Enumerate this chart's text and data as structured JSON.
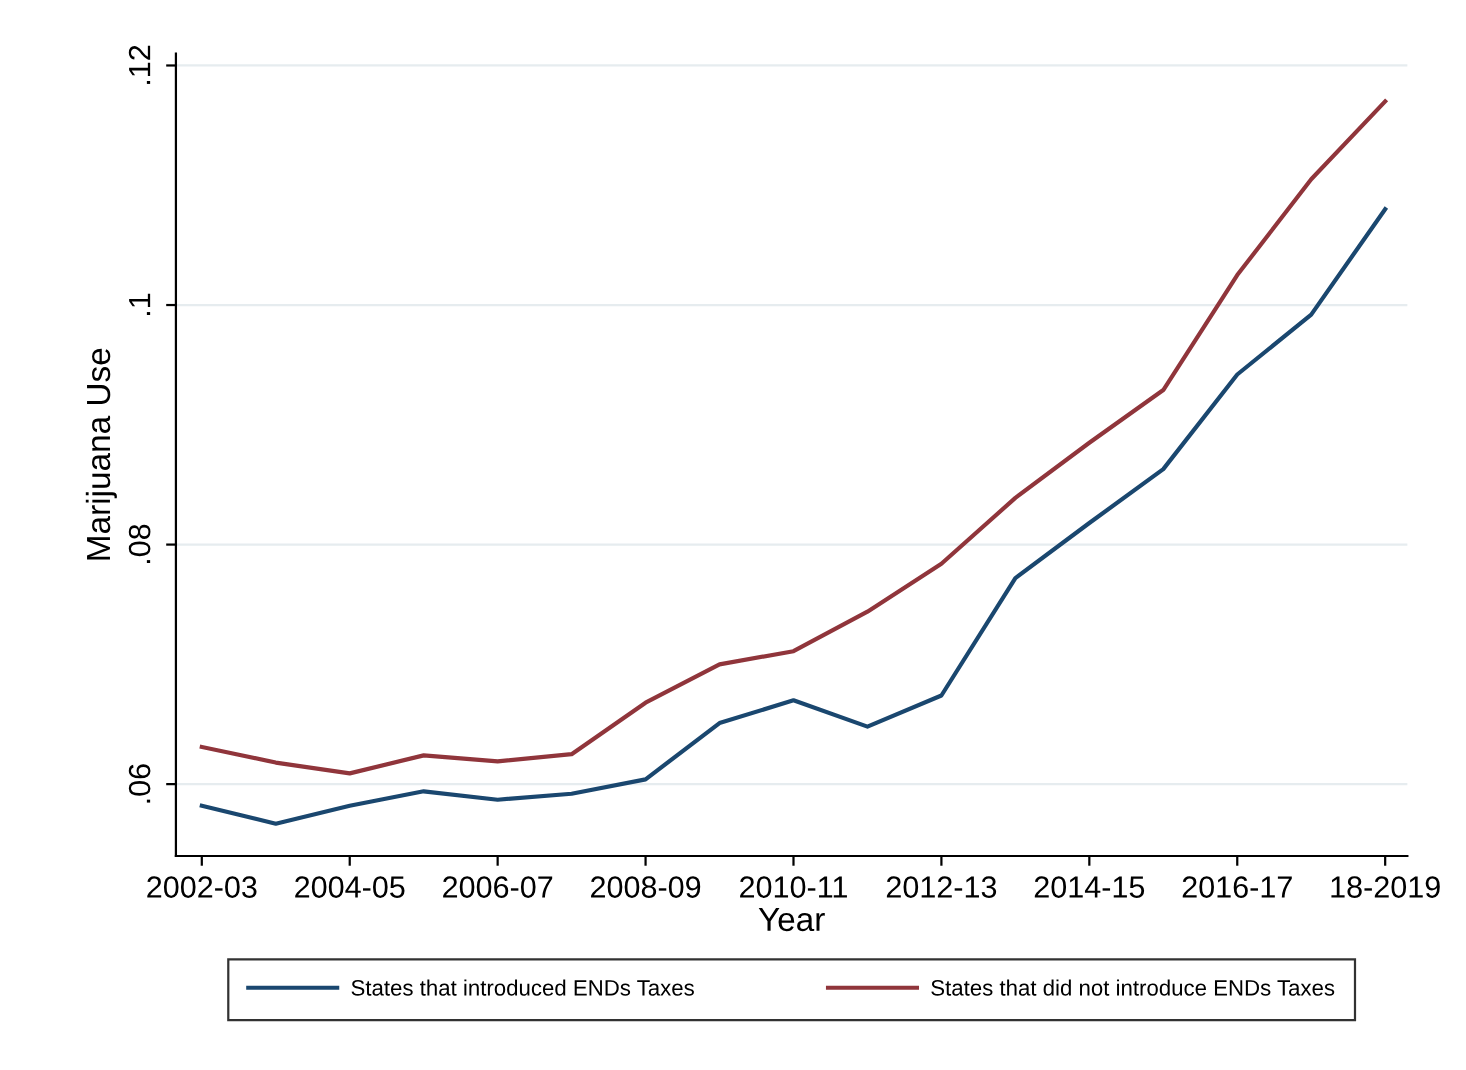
{
  "chart_data": {
    "type": "line",
    "xlabel": "Year",
    "ylabel": "Marijuana Use",
    "categories": [
      "2002-03",
      null,
      "2004-05",
      null,
      "2006-07",
      null,
      "2008-09",
      null,
      "2010-11",
      null,
      "2012-13",
      null,
      "2014-15",
      null,
      "2016-17",
      null,
      "18-2019"
    ],
    "series": [
      {
        "name": "States that introduced ENDs Taxes",
        "color": "#1a476f",
        "values": [
          0.0582,
          0.0567,
          0.0582,
          0.0594,
          0.0587,
          0.0592,
          0.0604,
          0.0651,
          0.067,
          0.0648,
          0.0674,
          0.0772,
          0.0818,
          0.0863,
          0.0942,
          0.0992,
          0.108
        ]
      },
      {
        "name": "States that did not introduce ENDs Taxes",
        "color": "#90353b",
        "values": [
          0.0631,
          0.0618,
          0.0609,
          0.0624,
          0.0619,
          0.0625,
          0.0668,
          0.07,
          0.0711,
          0.0744,
          0.0784,
          0.0839,
          0.0885,
          0.0929,
          0.1025,
          0.1105,
          0.117
        ]
      }
    ],
    "ylim": [
      0.054,
      0.121
    ],
    "yticks": [
      {
        "value": 0.06,
        "label": ".06"
      },
      {
        "value": 0.08,
        "label": ".08"
      },
      {
        "value": 0.1,
        "label": ".1"
      },
      {
        "value": 0.12,
        "label": ".12"
      }
    ],
    "grid": "y",
    "legend": "bottom",
    "line_style": "solid",
    "marker": "none"
  }
}
